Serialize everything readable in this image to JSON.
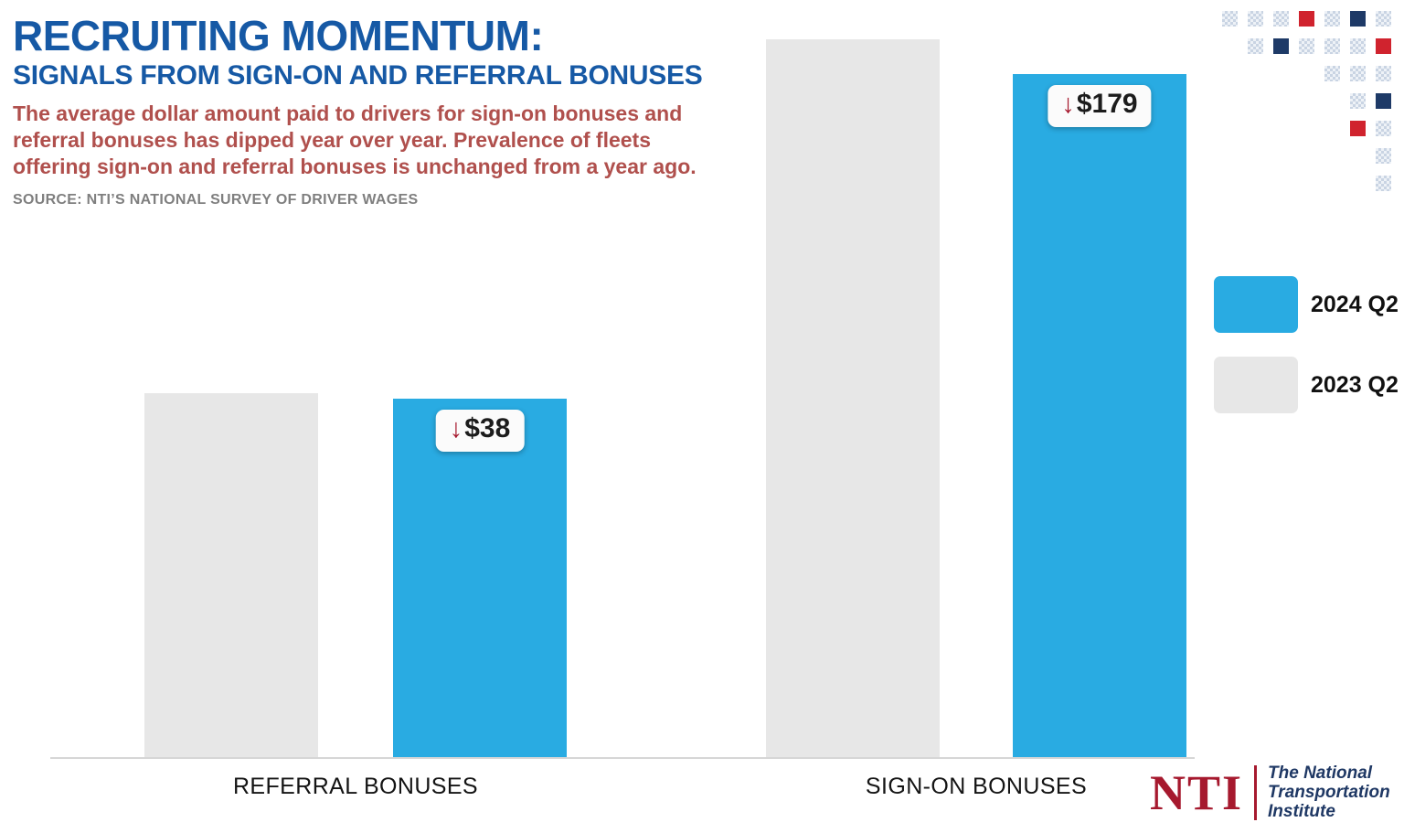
{
  "header": {
    "title": "RECRUITING MOMENTUM:",
    "subtitle": "SIGNALS FROM SIGN-ON AND REFERRAL BONUSES",
    "description": "The average dollar amount paid to drivers for sign-on bonuses and referral bonuses has dipped year over year. Prevalence of fleets offering sign-on and referral bonuses is unchanged from a year ago.",
    "source": "SOURCE: NTI’S NATIONAL SURVEY OF DRIVER WAGES"
  },
  "chart_data": {
    "type": "bar",
    "categories": [
      "REFERRAL BONUSES",
      "SIGN-ON BONUSES"
    ],
    "series": [
      {
        "name": "2023 Q2",
        "color": "#e7e7e7",
        "values": [
          50.8,
          100
        ]
      },
      {
        "name": "2024 Q2",
        "color": "#29abe2",
        "values": [
          50.0,
          95.2
        ]
      }
    ],
    "values_note": "No numeric axis is shown; values are relative bar heights as percent of the tallest bar (2023 Q2 sign-on bonuses). Labels show only the year-over-year dollar change.",
    "annotations": [
      {
        "category": "REFERRAL BONUSES",
        "series": "2024 Q2",
        "arrow": "↓",
        "text": "$38",
        "color": "#a6192e"
      },
      {
        "category": "SIGN-ON BONUSES",
        "series": "2024 Q2",
        "arrow": "↓",
        "text": "$179",
        "color": "#a6192e"
      }
    ],
    "legend": [
      "2024 Q2",
      "2023 Q2"
    ],
    "legend_position": "right",
    "grid": false
  },
  "decor": {
    "colors": {
      "red": "#d0232e",
      "navy": "#1e3a67",
      "light": "#dbe2ec"
    },
    "cells": [
      {
        "r": 0,
        "c": 0,
        "k": "light"
      },
      {
        "r": 0,
        "c": 1,
        "k": "light"
      },
      {
        "r": 0,
        "c": 2,
        "k": "light"
      },
      {
        "r": 0,
        "c": 3,
        "k": "red"
      },
      {
        "r": 0,
        "c": 4,
        "k": "light"
      },
      {
        "r": 0,
        "c": 5,
        "k": "navy"
      },
      {
        "r": 0,
        "c": 6,
        "k": "light"
      },
      {
        "r": 1,
        "c": 1,
        "k": "light"
      },
      {
        "r": 1,
        "c": 2,
        "k": "navy"
      },
      {
        "r": 1,
        "c": 3,
        "k": "light"
      },
      {
        "r": 1,
        "c": 4,
        "k": "light"
      },
      {
        "r": 1,
        "c": 5,
        "k": "light"
      },
      {
        "r": 1,
        "c": 6,
        "k": "red"
      },
      {
        "r": 2,
        "c": 4,
        "k": "light"
      },
      {
        "r": 2,
        "c": 5,
        "k": "light"
      },
      {
        "r": 2,
        "c": 6,
        "k": "light"
      },
      {
        "r": 3,
        "c": 5,
        "k": "light"
      },
      {
        "r": 3,
        "c": 6,
        "k": "navy"
      },
      {
        "r": 4,
        "c": 5,
        "k": "red"
      },
      {
        "r": 4,
        "c": 6,
        "k": "light"
      },
      {
        "r": 5,
        "c": 6,
        "k": "light"
      },
      {
        "r": 6,
        "c": 6,
        "k": "light"
      }
    ]
  },
  "logo": {
    "abbr": "NTI",
    "name_lines": [
      "The National",
      "Transportation",
      "Institute"
    ],
    "red": "#a6192e",
    "navy": "#1f3864"
  },
  "colors": {
    "title_blue": "#1659a5",
    "description_red": "#b0504d",
    "source_gray": "#7f7f7f",
    "bar_blue": "#29abe2",
    "bar_gray": "#e7e7e7",
    "badge_bg": "#fbfbfb"
  }
}
